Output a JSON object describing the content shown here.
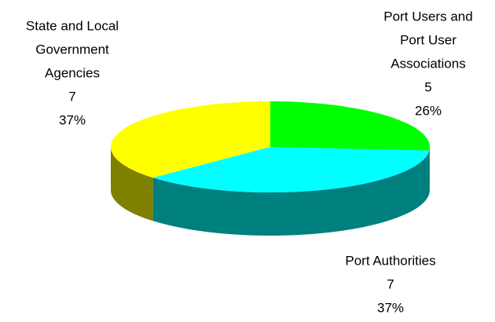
{
  "chart_data": {
    "type": "pie3d",
    "categories": [
      [
        "Port Users and",
        "Port User",
        "Associations"
      ],
      [
        "Port Authorities"
      ],
      [
        "State and Local",
        "Government",
        "Agencies"
      ]
    ],
    "values": [
      5,
      7,
      7
    ],
    "percents": [
      26,
      37,
      37
    ],
    "percent_labels": [
      "26%",
      "37%",
      "37%"
    ],
    "colors": [
      "#00ff00",
      "#00ffff",
      "#ffff00"
    ]
  }
}
